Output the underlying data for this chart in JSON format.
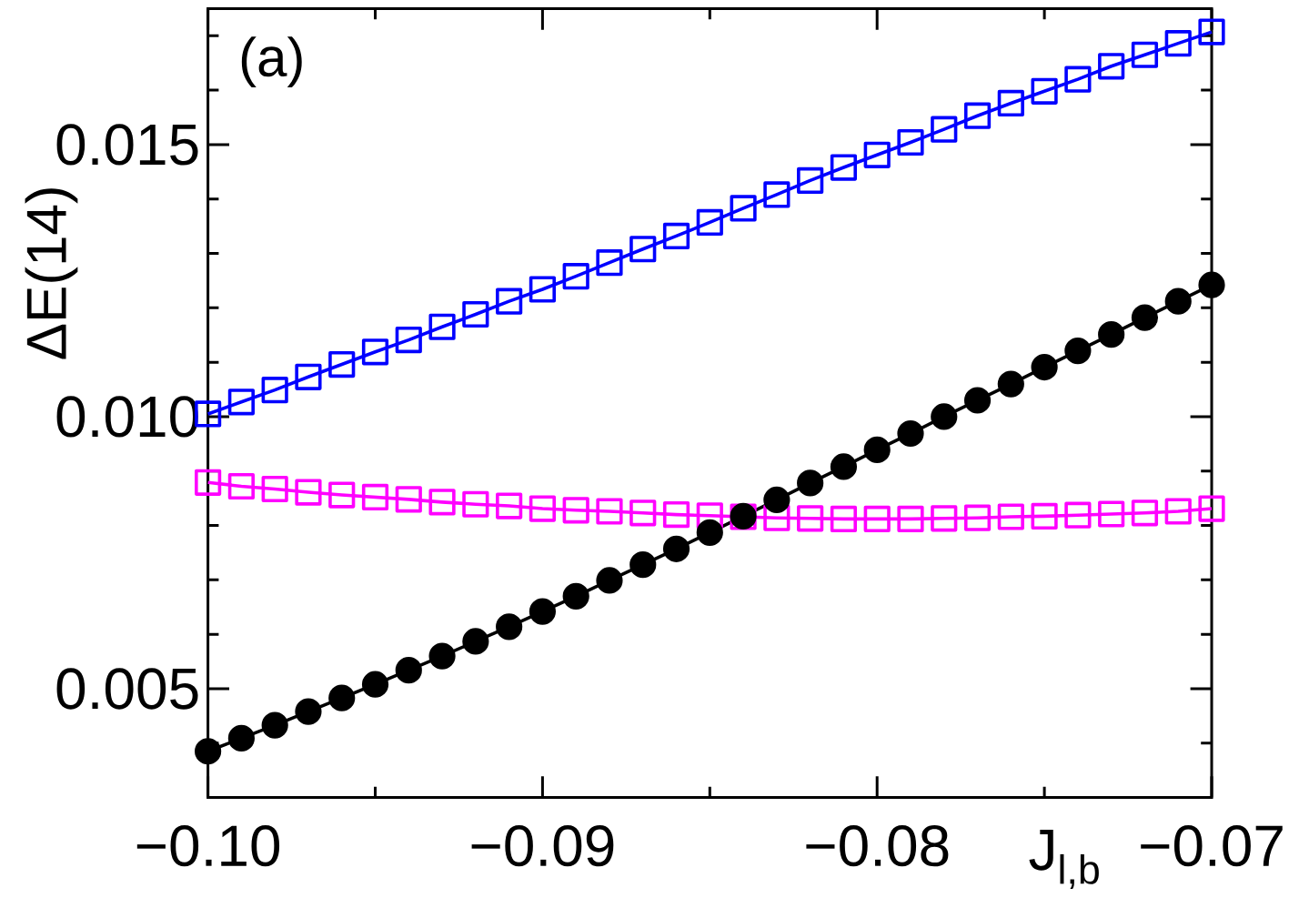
{
  "chart_data": {
    "type": "line",
    "xlabel": "J$_{l,b}$",
    "ylabel": "ΔE(14)",
    "annotations": [
      "(a)"
    ],
    "x": [
      -0.1,
      -0.099,
      -0.098,
      -0.097,
      -0.096,
      -0.095,
      -0.094,
      -0.093,
      -0.092,
      -0.091,
      -0.09,
      -0.089,
      -0.088,
      -0.087,
      -0.086,
      -0.085,
      -0.084,
      -0.083,
      -0.082,
      -0.081,
      -0.08,
      -0.079,
      -0.078,
      -0.077,
      -0.076,
      -0.075,
      -0.074,
      -0.073,
      -0.072,
      -0.071,
      -0.07
    ],
    "series": [
      {
        "color": "#0000ff",
        "marker": "square",
        "values": [
          0.01005,
          0.01027,
          0.01049,
          0.01073,
          0.01096,
          0.01119,
          0.01141,
          0.01165,
          0.01188,
          0.01212,
          0.01234,
          0.01258,
          0.01283,
          0.01308,
          0.01332,
          0.01357,
          0.01383,
          0.01408,
          0.01434,
          0.01458,
          0.01481,
          0.01504,
          0.01528,
          0.01553,
          0.01576,
          0.01598,
          0.0162,
          0.01644,
          0.01665,
          0.01686,
          0.01707
        ]
      },
      {
        "color": "#ff00ff",
        "marker": "square",
        "values": [
          0.00879,
          0.00872,
          0.00867,
          0.00861,
          0.00856,
          0.00852,
          0.00848,
          0.00843,
          0.00839,
          0.00836,
          0.00831,
          0.00828,
          0.00826,
          0.00823,
          0.0082,
          0.00818,
          0.00816,
          0.00814,
          0.00813,
          0.00812,
          0.00812,
          0.00812,
          0.00813,
          0.00814,
          0.00816,
          0.00817,
          0.00819,
          0.00821,
          0.00823,
          0.00826,
          0.00831
        ]
      },
      {
        "color": "#000000",
        "marker": "circle",
        "values": [
          0.00385,
          0.00409,
          0.00433,
          0.00458,
          0.00483,
          0.00508,
          0.00534,
          0.0056,
          0.00587,
          0.00614,
          0.00642,
          0.0067,
          0.00699,
          0.00728,
          0.00757,
          0.00787,
          0.00817,
          0.00847,
          0.00878,
          0.00908,
          0.00939,
          0.00969,
          0.01,
          0.0103,
          0.0106,
          0.01091,
          0.01121,
          0.01151,
          0.01182,
          0.01212,
          0.01242
        ]
      }
    ],
    "line_style": "solid",
    "xlim": [
      -0.1,
      -0.07
    ],
    "xticks": [
      {
        "value": -0.1,
        "label": "−0.10"
      },
      {
        "value": -0.095,
        "label": null
      },
      {
        "value": -0.09,
        "label": "−0.09"
      },
      {
        "value": -0.085,
        "label": null
      },
      {
        "value": -0.08,
        "label": "−0.08"
      },
      {
        "value": -0.075,
        "label": null
      },
      {
        "value": -0.07,
        "label": "−0.07"
      }
    ],
    "ylim": [
      0.003,
      0.0175
    ],
    "yticks": [
      {
        "value": 0.004,
        "label": null
      },
      0.005,
      {
        "value": 0.006,
        "label": null
      },
      {
        "value": 0.007,
        "label": null
      },
      {
        "value": 0.008,
        "label": null
      },
      {
        "value": 0.009,
        "label": null
      },
      {
        "value": 0.01,
        "label": "0.010"
      },
      {
        "value": 0.011,
        "label": null
      },
      {
        "value": 0.012,
        "label": null
      },
      {
        "value": 0.013,
        "label": null
      },
      {
        "value": 0.014,
        "label": null
      },
      0.015,
      {
        "value": 0.016,
        "label": null
      },
      {
        "value": 0.017,
        "label": null
      }
    ]
  }
}
